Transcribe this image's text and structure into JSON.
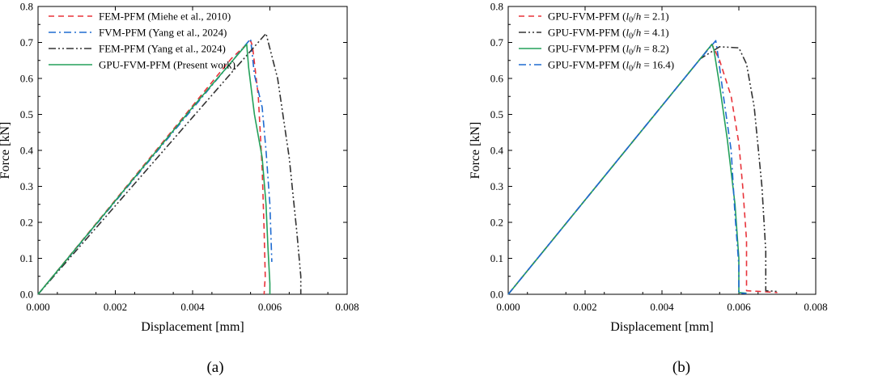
{
  "chart_data": [
    {
      "type": "line",
      "panel_label": "(a)",
      "xlabel": "Displacement [mm]",
      "ylabel": "Force [kN]",
      "xlim": [
        0,
        0.008
      ],
      "ylim": [
        0,
        0.8
      ],
      "xticks": [
        "0.000",
        "0.002",
        "0.004",
        "0.006",
        "0.008"
      ],
      "yticks": [
        "0.0",
        "0.1",
        "0.2",
        "0.3",
        "0.4",
        "0.5",
        "0.6",
        "0.7",
        "0.8"
      ],
      "legend_position": "top-left",
      "series": [
        {
          "name": "FEM-PFM (Miehe et al., 2010)",
          "color": "#e8333a",
          "dash": "dashed",
          "x": [
            0,
            0.001,
            0.002,
            0.003,
            0.004,
            0.005,
            0.0055,
            0.00555,
            0.0057,
            0.0058,
            0.00585,
            0.00588,
            0.00585
          ],
          "y": [
            0,
            0.131,
            0.262,
            0.393,
            0.524,
            0.655,
            0.705,
            0.69,
            0.55,
            0.35,
            0.18,
            0.05,
            0
          ]
        },
        {
          "name": "FVM-PFM (Yang et al., 2024)",
          "color": "#1f6bd1",
          "dash": "dashdot",
          "x": [
            0,
            0.001,
            0.002,
            0.003,
            0.004,
            0.005,
            0.0055,
            0.0056,
            0.0058,
            0.0059,
            0.006,
            0.00605
          ],
          "y": [
            0,
            0.129,
            0.258,
            0.387,
            0.516,
            0.645,
            0.71,
            0.61,
            0.52,
            0.4,
            0.25,
            0.09
          ]
        },
        {
          "name": "FEM-PFM (Yang et al., 2024)",
          "color": "#333333",
          "dash": "dashdotdot",
          "x": [
            0,
            0.001,
            0.002,
            0.003,
            0.004,
            0.005,
            0.0059,
            0.0062,
            0.0065,
            0.0067,
            0.0068,
            0.0068
          ],
          "y": [
            0,
            0.123,
            0.246,
            0.369,
            0.492,
            0.615,
            0.725,
            0.6,
            0.38,
            0.17,
            0.05,
            0
          ]
        },
        {
          "name": "GPU-FVM-PFM (Present work)",
          "color": "#23a05a",
          "dash": "solid",
          "x": [
            0,
            0.001,
            0.002,
            0.003,
            0.004,
            0.005,
            0.0054,
            0.00545,
            0.0056,
            0.0058,
            0.0059,
            0.00595,
            0.006,
            0.006
          ],
          "y": [
            0,
            0.13,
            0.26,
            0.39,
            0.52,
            0.645,
            0.695,
            0.63,
            0.5,
            0.38,
            0.25,
            0.13,
            0.03,
            0
          ]
        }
      ]
    },
    {
      "type": "line",
      "panel_label": "(b)",
      "xlabel": "Displacement [mm]",
      "ylabel": "Force [kN]",
      "xlim": [
        0,
        0.008
      ],
      "ylim": [
        0,
        0.8
      ],
      "xticks": [
        "0.000",
        "0.002",
        "0.004",
        "0.006",
        "0.008"
      ],
      "yticks": [
        "0.0",
        "0.1",
        "0.2",
        "0.3",
        "0.4",
        "0.5",
        "0.6",
        "0.7",
        "0.8"
      ],
      "legend_position": "top-left",
      "series": [
        {
          "name": "GPU-FVM-PFM (l0/h = 2.1)",
          "name_prefix": "GPU-FVM-PFM (",
          "name_var": "l",
          "name_sub": "0",
          "name_mid": "/",
          "name_var2": "h",
          "name_suffix": " = 2.1)",
          "color": "#e8333a",
          "dash": "dashed",
          "x": [
            0,
            0.001,
            0.002,
            0.003,
            0.004,
            0.005,
            0.0053,
            0.0055,
            0.0058,
            0.006,
            0.0061,
            0.0062,
            0.0062,
            0.007
          ],
          "y": [
            0,
            0.131,
            0.262,
            0.393,
            0.524,
            0.655,
            0.695,
            0.65,
            0.55,
            0.42,
            0.3,
            0.15,
            0.01,
            0.005
          ]
        },
        {
          "name": "GPU-FVM-PFM (l0/h = 4.1)",
          "name_prefix": "GPU-FVM-PFM (",
          "name_var": "l",
          "name_sub": "0",
          "name_mid": "/",
          "name_var2": "h",
          "name_suffix": " = 4.1)",
          "color": "#333333",
          "dash": "dashdotdot",
          "x": [
            0,
            0.001,
            0.002,
            0.003,
            0.004,
            0.005,
            0.0055,
            0.006,
            0.0062,
            0.0064,
            0.0066,
            0.0067,
            0.0067,
            0.007
          ],
          "y": [
            0,
            0.131,
            0.262,
            0.393,
            0.524,
            0.655,
            0.688,
            0.685,
            0.64,
            0.52,
            0.3,
            0.12,
            0.01,
            0.008
          ]
        },
        {
          "name": "GPU-FVM-PFM (l0/h = 8.2)",
          "name_prefix": "GPU-FVM-PFM (",
          "name_var": "l",
          "name_sub": "0",
          "name_mid": "/",
          "name_var2": "h",
          "name_suffix": " = 8.2)",
          "color": "#23a05a",
          "dash": "solid",
          "x": [
            0,
            0.001,
            0.002,
            0.003,
            0.004,
            0.005,
            0.0053,
            0.00535,
            0.0055,
            0.0057,
            0.0059,
            0.006,
            0.006,
            0.0062
          ],
          "y": [
            0,
            0.131,
            0.262,
            0.393,
            0.524,
            0.655,
            0.695,
            0.68,
            0.58,
            0.43,
            0.25,
            0.1,
            0.005,
            0.003
          ]
        },
        {
          "name": "GPU-FVM-PFM (l0/h = 16.4)",
          "name_prefix": "GPU-FVM-PFM (",
          "name_var": "l",
          "name_sub": "0",
          "name_mid": "/",
          "name_var2": "h",
          "name_suffix": " = 16.4)",
          "color": "#1f6bd1",
          "dash": "dashdot",
          "x": [
            0,
            0.001,
            0.002,
            0.003,
            0.004,
            0.005,
            0.0054,
            0.00545,
            0.0056,
            0.0058,
            0.0059,
            0.006,
            0.006,
            0.0062
          ],
          "y": [
            0,
            0.131,
            0.262,
            0.393,
            0.524,
            0.655,
            0.705,
            0.67,
            0.55,
            0.4,
            0.22,
            0.08,
            0.004,
            0.002
          ]
        }
      ]
    }
  ]
}
